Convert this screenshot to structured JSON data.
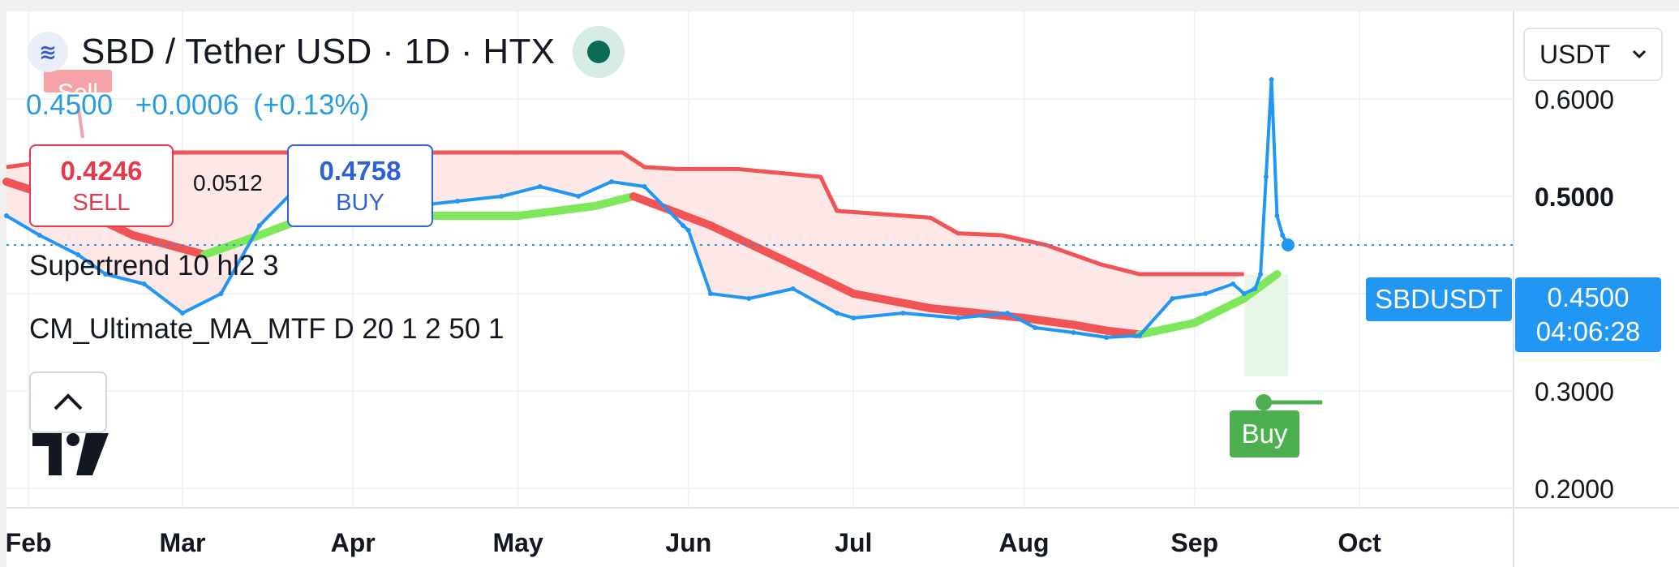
{
  "header": {
    "symbol_title": "SBD / Tether USD · 1D · HTX",
    "last_price": "0.4500",
    "change": "+0.0006",
    "change_pct": "(+0.13%)"
  },
  "order_panel": {
    "sell_price": "0.4246",
    "sell_label": "SELL",
    "spread": "0.0512",
    "buy_price": "0.4758",
    "buy_label": "BUY"
  },
  "indicators": [
    {
      "label": "Supertrend 10 hl2 3"
    },
    {
      "label": "CM_Ultimate_MA_MTF D 20 1 2 50 1"
    }
  ],
  "currency_select": {
    "value": "USDT"
  },
  "price_tag": {
    "symbol": "SBDUSDT",
    "price": "0.4500",
    "countdown": "04:06:28"
  },
  "markers": {
    "sell": "Sell",
    "buy": "Buy"
  },
  "colors": {
    "price_line": "#2196f3",
    "supertrend_down": "#f05454",
    "supertrend_fill": "#fde4e4",
    "ma_up": "#7ee85a",
    "ma_down": "#f05454",
    "buy_fill": "#e8f5e9",
    "buy_marker": "#4caf50"
  },
  "icons": {
    "symbol_logo": "steem-logo-icon",
    "collapse": "chevron-up-icon",
    "brand": "tradingview-logo"
  },
  "chart_data": {
    "type": "line",
    "y_ticks": [
      "0.6000",
      "0.5000",
      "0.3000",
      "0.2000"
    ],
    "y_ticks_bold": [
      "0.5000"
    ],
    "x_ticks": [
      "Feb",
      "Mar",
      "Apr",
      "May",
      "Jun",
      "Jul",
      "Aug",
      "Sep",
      "Oct"
    ],
    "ylim": [
      0.18,
      0.69
    ],
    "x_domain": [
      "2025-01-28",
      "2025-10-29"
    ],
    "grid": true,
    "series": [
      {
        "name": "SBDUSDT",
        "x": [
          "2025-01-28",
          "2025-02-03",
          "2025-02-10",
          "2025-02-15",
          "2025-02-22",
          "2025-03-01",
          "2025-03-08",
          "2025-03-15",
          "2025-03-22",
          "2025-03-27",
          "2025-04-01",
          "2025-04-05",
          "2025-04-12",
          "2025-04-20",
          "2025-04-28",
          "2025-05-05",
          "2025-05-12",
          "2025-05-18",
          "2025-05-24",
          "2025-05-31",
          "2025-06-01",
          "2025-06-05",
          "2025-06-12",
          "2025-06-20",
          "2025-06-28",
          "2025-07-01",
          "2025-07-10",
          "2025-07-20",
          "2025-07-29",
          "2025-08-03",
          "2025-08-10",
          "2025-08-16",
          "2025-08-22",
          "2025-08-28",
          "2025-09-03",
          "2025-09-08",
          "2025-09-10",
          "2025-09-12",
          "2025-09-13",
          "2025-09-14",
          "2025-09-15",
          "2025-09-16",
          "2025-09-17",
          "2025-09-18"
        ],
        "y": [
          0.48,
          0.46,
          0.44,
          0.42,
          0.41,
          0.38,
          0.4,
          0.47,
          0.51,
          0.52,
          0.5,
          0.485,
          0.49,
          0.495,
          0.5,
          0.51,
          0.5,
          0.515,
          0.51,
          0.47,
          0.465,
          0.4,
          0.395,
          0.405,
          0.38,
          0.375,
          0.38,
          0.375,
          0.38,
          0.365,
          0.36,
          0.355,
          0.357,
          0.395,
          0.4,
          0.41,
          0.4,
          0.405,
          0.42,
          0.52,
          0.62,
          0.48,
          0.46,
          0.45
        ]
      },
      {
        "name": "Supertrend",
        "x": [
          "2025-01-28",
          "2025-02-10",
          "2025-02-20",
          "2025-03-01",
          "2025-03-15",
          "2025-04-15",
          "2025-05-20",
          "2025-05-24",
          "2025-05-30",
          "2025-06-10",
          "2025-06-25",
          "2025-06-28",
          "2025-07-15",
          "2025-07-20",
          "2025-07-28",
          "2025-08-05",
          "2025-08-15",
          "2025-08-22",
          "2025-09-08",
          "2025-09-10"
        ],
        "y": [
          0.53,
          0.54,
          0.545,
          0.545,
          0.545,
          0.545,
          0.545,
          0.53,
          0.528,
          0.528,
          0.52,
          0.485,
          0.478,
          0.462,
          0.46,
          0.45,
          0.43,
          0.42,
          0.42,
          0.42
        ]
      },
      {
        "name": "CM_Ultimate_MA",
        "x": [
          "2025-01-28",
          "2025-02-05",
          "2025-02-20",
          "2025-03-05",
          "2025-03-15",
          "2025-03-22",
          "2025-04-01",
          "2025-04-15",
          "2025-05-01",
          "2025-05-15",
          "2025-05-22",
          "2025-06-05",
          "2025-06-20",
          "2025-07-01",
          "2025-07-15",
          "2025-08-01",
          "2025-08-10",
          "2025-08-16",
          "2025-08-22",
          "2025-09-01",
          "2025-09-10",
          "2025-09-16"
        ],
        "y": [
          0.515,
          0.5,
          0.46,
          0.44,
          0.46,
          0.475,
          0.48,
          0.48,
          0.48,
          0.49,
          0.5,
          0.47,
          0.43,
          0.4,
          0.385,
          0.375,
          0.368,
          0.362,
          0.358,
          0.37,
          0.395,
          0.42
        ]
      }
    ]
  }
}
